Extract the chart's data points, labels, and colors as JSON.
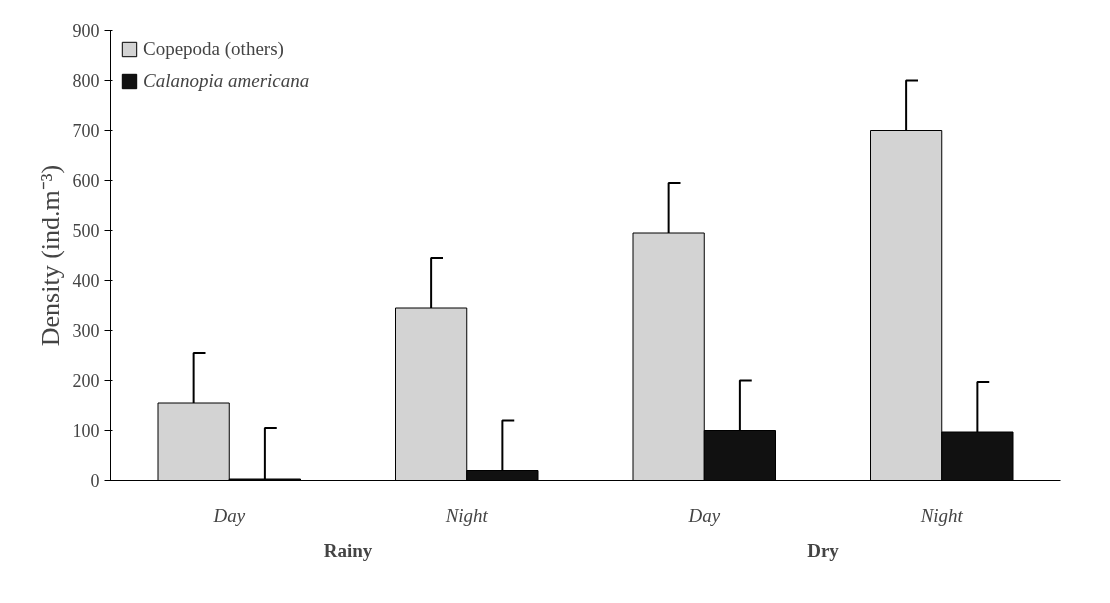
{
  "chart_data": {
    "type": "bar",
    "ylabel": "Density (ind.m⁻³)",
    "categories": [
      "Day",
      "Night",
      "Day",
      "Night"
    ],
    "series": [
      {
        "name": "Copepoda (others)",
        "color": "#d3d3d3",
        "values": [
          155,
          345,
          495,
          700
        ],
        "errors": [
          [
            155,
            255
          ],
          [
            345,
            445
          ],
          [
            495,
            595
          ],
          [
            700,
            800
          ]
        ]
      },
      {
        "name": "Calanopia americana",
        "color": "#111111",
        "values": [
          3,
          20,
          100,
          97
        ],
        "errors": [
          [
            3,
            105
          ],
          [
            20,
            120
          ],
          [
            100,
            200
          ],
          [
            97,
            197
          ]
        ]
      }
    ],
    "annotations": [
      "Rainy",
      "Dry"
    ],
    "ylim": [
      0,
      900
    ],
    "yticks": [
      0,
      100,
      200,
      300,
      400,
      500,
      600,
      700,
      800,
      900
    ],
    "grid": false,
    "legend": "top left"
  }
}
